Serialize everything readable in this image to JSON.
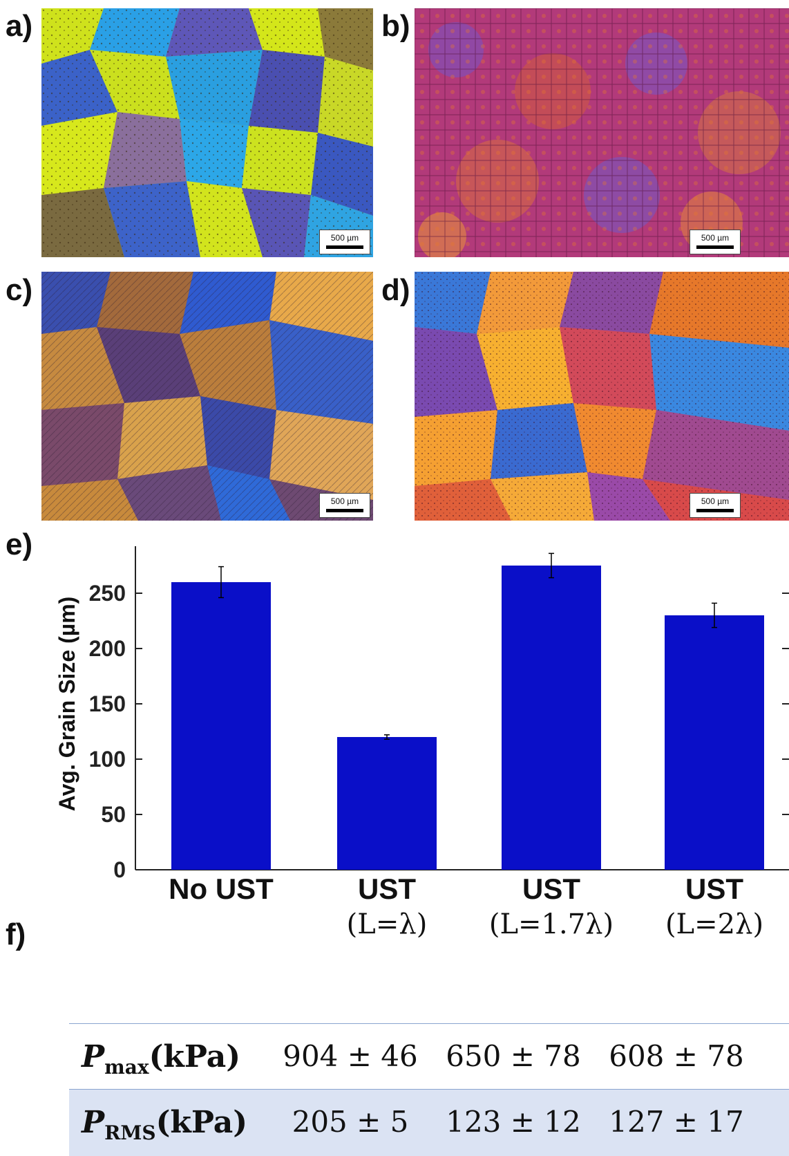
{
  "panels": {
    "a": {
      "label": "a)",
      "scale": "500 µm"
    },
    "b": {
      "label": "b)",
      "scale": "500 µm"
    },
    "c": {
      "label": "c)",
      "scale": "500 µm"
    },
    "d": {
      "label": "d)",
      "scale": "500 µm"
    },
    "e": {
      "label": "e)"
    },
    "f": {
      "label": "f)"
    }
  },
  "chart_data": {
    "type": "bar",
    "categories": [
      "No UST",
      "UST",
      "UST",
      "UST"
    ],
    "category_sublabels": [
      "",
      "(L=λ)",
      "(L=1.7λ)",
      "(L=2λ)"
    ],
    "values": [
      260,
      120,
      275,
      230
    ],
    "errors": [
      14,
      2,
      11,
      11
    ],
    "ylabel": "Avg. Grain Size (µm)",
    "xlabel": "",
    "ylim": [
      0,
      300
    ],
    "yticks": [
      0,
      50,
      100,
      150,
      200,
      250,
      300
    ],
    "bar_color": "#0a0fc8",
    "grid": false
  },
  "table_f": {
    "rows": [
      {
        "symbol": "P",
        "subscript": "max",
        "unit": "(kPa)",
        "values": [
          "904 ± 46",
          "650 ± 78",
          "608 ± 78"
        ]
      },
      {
        "symbol": "P",
        "subscript": "RMS",
        "unit": "(kPa)",
        "values": [
          "205 ± 5",
          "123 ± 12",
          "127 ± 17"
        ]
      }
    ]
  }
}
